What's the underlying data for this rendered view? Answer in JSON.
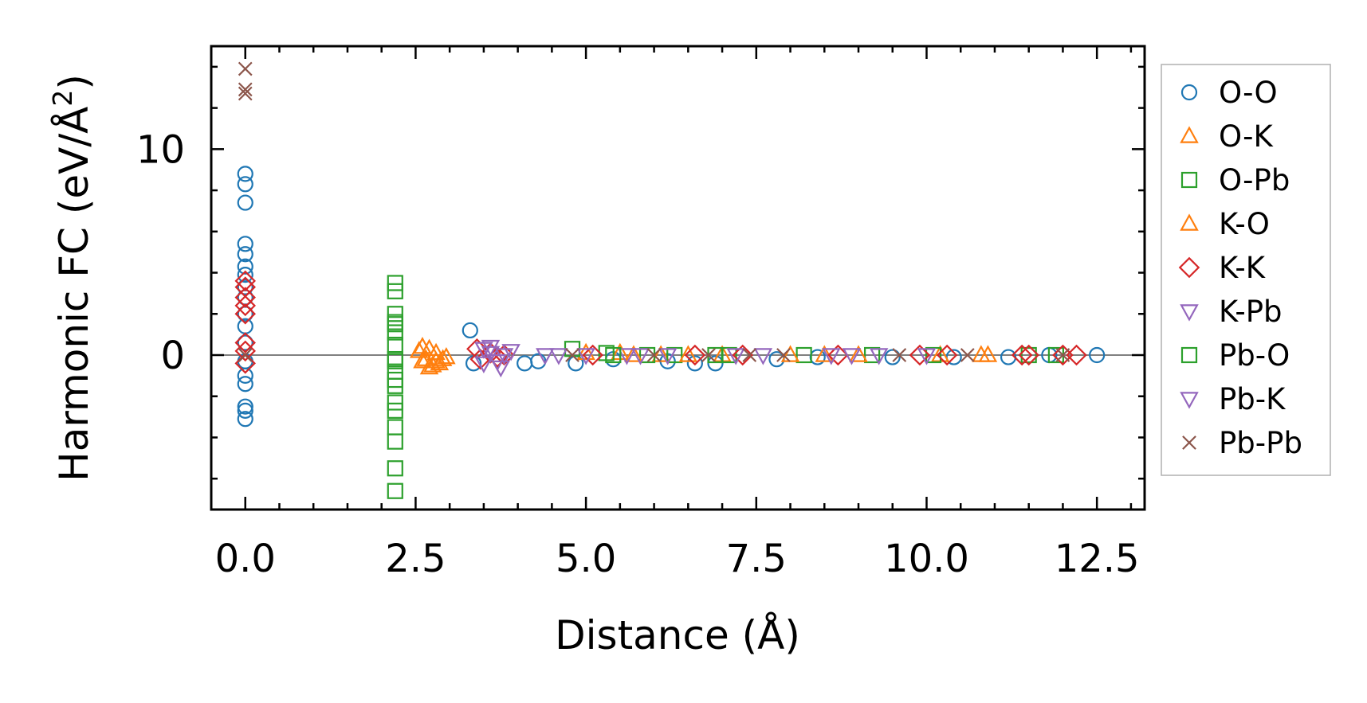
{
  "chart_data": {
    "type": "scatter",
    "title": "",
    "xlabel": "Distance (Å)",
    "ylabel_main": "Harmonic FC (eV/Å",
    "ylabel_sup": "2",
    "ylabel_close": ")",
    "xlim": [
      -0.5,
      13.2
    ],
    "ylim": [
      -7.5,
      15.0
    ],
    "x_ticks": [
      0.0,
      2.5,
      5.0,
      7.5,
      10.0,
      12.5
    ],
    "x_tick_labels": [
      "0.0",
      "2.5",
      "5.0",
      "7.5",
      "10.0",
      "12.5"
    ],
    "y_ticks": [
      0,
      10
    ],
    "y_tick_labels": [
      "0",
      "10"
    ],
    "x_minor_step": 0.5,
    "y_minor_step": 2,
    "reference_line_y": 0,
    "legend_position": "outside-right",
    "series": [
      {
        "name": "O-O",
        "marker": "circle",
        "color": "#1f77b4",
        "points": [
          [
            0,
            8.8
          ],
          [
            0,
            8.3
          ],
          [
            0,
            7.4
          ],
          [
            0,
            5.4
          ],
          [
            0,
            4.9
          ],
          [
            0,
            4.3
          ],
          [
            0,
            3.9
          ],
          [
            0,
            3.3
          ],
          [
            0,
            2.8
          ],
          [
            0,
            2.0
          ],
          [
            0,
            1.4
          ],
          [
            0,
            0.6
          ],
          [
            0,
            -0.3
          ],
          [
            0,
            -1.0
          ],
          [
            0,
            -1.4
          ],
          [
            0,
            -2.5
          ],
          [
            0,
            -2.7
          ],
          [
            0,
            -3.1
          ],
          [
            3.3,
            1.2
          ],
          [
            3.35,
            -0.4
          ],
          [
            4.1,
            -0.4
          ],
          [
            4.3,
            -0.3
          ],
          [
            4.85,
            -0.4
          ],
          [
            5.4,
            -0.2
          ],
          [
            6.2,
            -0.3
          ],
          [
            6.6,
            -0.4
          ],
          [
            6.9,
            -0.4
          ],
          [
            7.8,
            -0.2
          ],
          [
            8.4,
            -0.1
          ],
          [
            9.5,
            -0.1
          ],
          [
            10.4,
            -0.1
          ],
          [
            11.2,
            -0.1
          ],
          [
            11.8,
            0.0
          ],
          [
            12.5,
            0.0
          ]
        ]
      },
      {
        "name": "O-K",
        "marker": "triangle-up",
        "color": "#ff7f0e",
        "points": [
          [
            2.55,
            0.2
          ],
          [
            2.6,
            0.4
          ],
          [
            2.65,
            -0.2
          ],
          [
            2.7,
            0.3
          ],
          [
            2.75,
            -0.5
          ],
          [
            2.8,
            0.1
          ],
          [
            2.85,
            -0.4
          ],
          [
            2.95,
            -0.1
          ],
          [
            5.0,
            0.1
          ],
          [
            5.5,
            0.1
          ],
          [
            6.1,
            0.0
          ],
          [
            7.0,
            0.0
          ],
          [
            8.5,
            0.0
          ],
          [
            10.2,
            0.0
          ],
          [
            10.8,
            0.0
          ]
        ]
      },
      {
        "name": "O-Pb",
        "marker": "square",
        "color": "#2ca02c",
        "points": [
          [
            2.2,
            3.5
          ],
          [
            2.2,
            3.1
          ],
          [
            2.2,
            2.0
          ],
          [
            2.2,
            1.6
          ],
          [
            2.2,
            1.1
          ],
          [
            2.2,
            0.5
          ],
          [
            2.2,
            -0.2
          ],
          [
            2.2,
            -0.8
          ],
          [
            2.2,
            -1.5
          ],
          [
            2.2,
            -2.3
          ],
          [
            2.2,
            -2.7
          ],
          [
            2.2,
            -3.5
          ],
          [
            2.2,
            -4.2
          ],
          [
            2.2,
            -5.5
          ],
          [
            2.2,
            -6.6
          ],
          [
            4.8,
            0.3
          ],
          [
            5.3,
            0.1
          ],
          [
            5.9,
            0.0
          ],
          [
            6.3,
            0.0
          ],
          [
            7.1,
            0.0
          ],
          [
            8.2,
            0.0
          ],
          [
            9.2,
            0.0
          ],
          [
            10.1,
            0.0
          ],
          [
            11.5,
            0.0
          ],
          [
            11.9,
            0.0
          ]
        ]
      },
      {
        "name": "K-O",
        "marker": "triangle-up",
        "color": "#ff7f0e",
        "points": [
          [
            2.6,
            -0.3
          ],
          [
            2.7,
            -0.6
          ],
          [
            2.8,
            -0.3
          ],
          [
            2.9,
            -0.2
          ],
          [
            5.7,
            0.0
          ],
          [
            6.5,
            0.0
          ],
          [
            8.0,
            0.0
          ],
          [
            9.0,
            0.0
          ],
          [
            10.9,
            0.0
          ]
        ]
      },
      {
        "name": "K-K",
        "marker": "diamond",
        "color": "#d62728",
        "points": [
          [
            0,
            3.6
          ],
          [
            0,
            3.3
          ],
          [
            0,
            2.8
          ],
          [
            0,
            2.4
          ],
          [
            0,
            2.0
          ],
          [
            0,
            0.6
          ],
          [
            0,
            0.2
          ],
          [
            0,
            -0.4
          ],
          [
            3.4,
            0.3
          ],
          [
            3.45,
            -0.2
          ],
          [
            3.6,
            0.1
          ],
          [
            3.7,
            -0.1
          ],
          [
            3.8,
            0.0
          ],
          [
            5.1,
            0.0
          ],
          [
            6.6,
            0.0
          ],
          [
            7.3,
            0.0
          ],
          [
            8.7,
            0.0
          ],
          [
            9.9,
            0.0
          ],
          [
            10.3,
            0.0
          ],
          [
            11.4,
            0.0
          ],
          [
            11.5,
            0.0
          ],
          [
            12.0,
            0.0
          ],
          [
            12.2,
            0.0
          ]
        ]
      },
      {
        "name": "K-Pb",
        "marker": "triangle-down",
        "color": "#9467bd",
        "points": [
          [
            3.5,
            0.3
          ],
          [
            3.6,
            0.1
          ],
          [
            3.7,
            -0.3
          ],
          [
            3.8,
            0.0
          ],
          [
            3.9,
            0.2
          ],
          [
            4.4,
            0.0
          ],
          [
            5.0,
            0.0
          ],
          [
            5.6,
            0.0
          ],
          [
            6.2,
            0.0
          ],
          [
            7.6,
            0.0
          ],
          [
            8.6,
            0.0
          ],
          [
            9.3,
            0.0
          ]
        ]
      },
      {
        "name": "Pb-O",
        "marker": "square",
        "color": "#2ca02c",
        "points": [
          [
            2.2,
            -0.3
          ],
          [
            2.2,
            1.5
          ],
          [
            2.2,
            -1.2
          ],
          [
            5.4,
            0.0
          ],
          [
            6.9,
            0.0
          ]
        ]
      },
      {
        "name": "Pb-K",
        "marker": "triangle-down",
        "color": "#9467bd",
        "points": [
          [
            3.5,
            -0.4
          ],
          [
            3.6,
            0.4
          ],
          [
            3.75,
            -0.6
          ],
          [
            4.6,
            0.0
          ],
          [
            5.8,
            0.0
          ],
          [
            7.2,
            0.0
          ],
          [
            8.9,
            0.0
          ],
          [
            10.0,
            0.0
          ]
        ]
      },
      {
        "name": "Pb-Pb",
        "marker": "x",
        "color": "#8c564b",
        "points": [
          [
            0,
            13.9
          ],
          [
            0,
            12.9
          ],
          [
            0,
            12.7
          ],
          [
            0,
            0.0
          ],
          [
            4.8,
            0.0
          ],
          [
            6.0,
            0.0
          ],
          [
            6.8,
            0.0
          ],
          [
            7.4,
            0.0
          ],
          [
            7.9,
            0.0
          ],
          [
            9.6,
            0.0
          ],
          [
            10.6,
            0.0
          ],
          [
            12.0,
            0.0
          ]
        ]
      }
    ]
  }
}
